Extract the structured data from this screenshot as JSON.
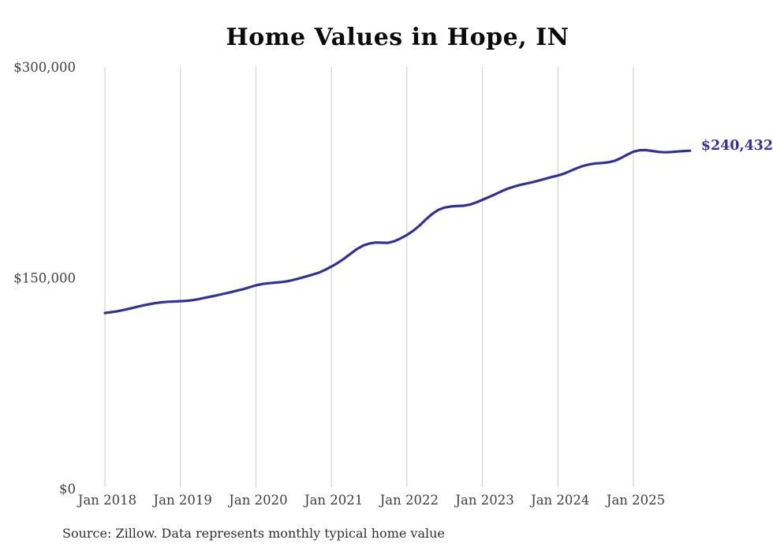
{
  "title": "Home Values in Hope, IN",
  "source_note": "Source: Zillow. Data represents monthly typical home value",
  "colors": {
    "line": "#34309b",
    "end_label": "#34309b",
    "grid": "#cccccc",
    "axis_text": "#3f3f3f",
    "title_text": "#0b0b0b",
    "source_text": "#2e2e2e",
    "background": "#ffffff"
  },
  "chart_data": {
    "type": "line",
    "title": "Home Values in Hope, IN",
    "xlabel": "",
    "ylabel": "",
    "x_unit": "month",
    "x_start": "2018-01",
    "x_end": "2025-10",
    "ylim": [
      0,
      300000
    ],
    "grid": "vertical-only",
    "legend": "none",
    "y_ticks": [
      {
        "value": 0,
        "label": "$0"
      },
      {
        "value": 150000,
        "label": "$150,000"
      },
      {
        "value": 300000,
        "label": "$300,000"
      }
    ],
    "x_ticks": [
      {
        "index": 0,
        "label": "Jan 2018"
      },
      {
        "index": 12,
        "label": "Jan 2019"
      },
      {
        "index": 24,
        "label": "Jan 2020"
      },
      {
        "index": 36,
        "label": "Jan 2021"
      },
      {
        "index": 48,
        "label": "Jan 2022"
      },
      {
        "index": 60,
        "label": "Jan 2023"
      },
      {
        "index": 72,
        "label": "Jan 2024"
      },
      {
        "index": 84,
        "label": "Jan 2025"
      }
    ],
    "end_value_label": "$240,432",
    "series": [
      {
        "name": "Monthly typical home value",
        "values": [
          125000,
          125600,
          126300,
          127200,
          128200,
          129300,
          130300,
          131200,
          132000,
          132600,
          133000,
          133200,
          133400,
          133700,
          134200,
          135000,
          135900,
          136800,
          137800,
          138800,
          139800,
          140900,
          142000,
          143300,
          144700,
          145600,
          146200,
          146600,
          147000,
          147600,
          148600,
          149800,
          151000,
          152300,
          153700,
          155700,
          158000,
          160600,
          163600,
          167000,
          170300,
          172900,
          174400,
          175100,
          175000,
          174900,
          176000,
          178100,
          180500,
          183500,
          187200,
          191500,
          195400,
          198400,
          200000,
          200800,
          201100,
          201300,
          202100,
          203600,
          205500,
          207400,
          209400,
          211500,
          213400,
          214900,
          216100,
          217100,
          218100,
          219300,
          220500,
          221700,
          222800,
          224200,
          226100,
          228000,
          229600,
          230700,
          231400,
          231700,
          232200,
          233200,
          235200,
          237600,
          239800,
          240800,
          240900,
          240300,
          239600,
          239300,
          239500,
          239900,
          240200,
          240432
        ]
      }
    ]
  }
}
